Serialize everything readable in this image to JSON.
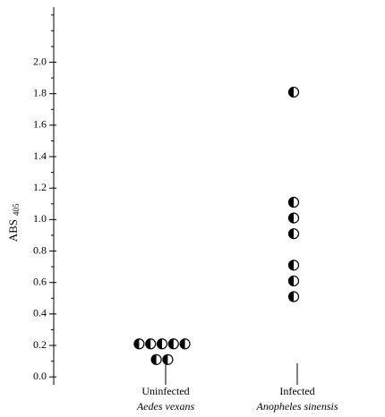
{
  "chart_data": {
    "type": "strip",
    "y_label": "ABS",
    "y_label_subscript": "405",
    "groups": [
      {
        "label": "Uninfected",
        "sublabel": "Aedes vexans",
        "values": [
          0.21,
          0.21,
          0.21,
          0.21,
          0.21,
          0.11,
          0.11
        ]
      },
      {
        "label": "Infected",
        "sublabel": "Anopheles sinensis",
        "values": [
          1.81,
          1.11,
          1.01,
          0.91,
          0.71,
          0.61,
          0.51
        ]
      }
    ],
    "ylim": [
      -0.05,
      2.35
    ],
    "yticks": [
      {
        "value": 0,
        "label": "0.0"
      },
      0.2,
      0.4,
      0.6,
      0.8,
      {
        "value": 1,
        "label": "1.0"
      },
      1.2,
      1.4,
      1.6,
      1.8,
      {
        "value": 2,
        "label": "2.0"
      }
    ],
    "minor_yticks": [
      0.1,
      0.3,
      0.5,
      0.7,
      0.9,
      1.1,
      1.3,
      1.5,
      1.7,
      1.9,
      2.1,
      2.2,
      2.3
    ],
    "marker": "half-filled-circle",
    "color": "#000000"
  }
}
